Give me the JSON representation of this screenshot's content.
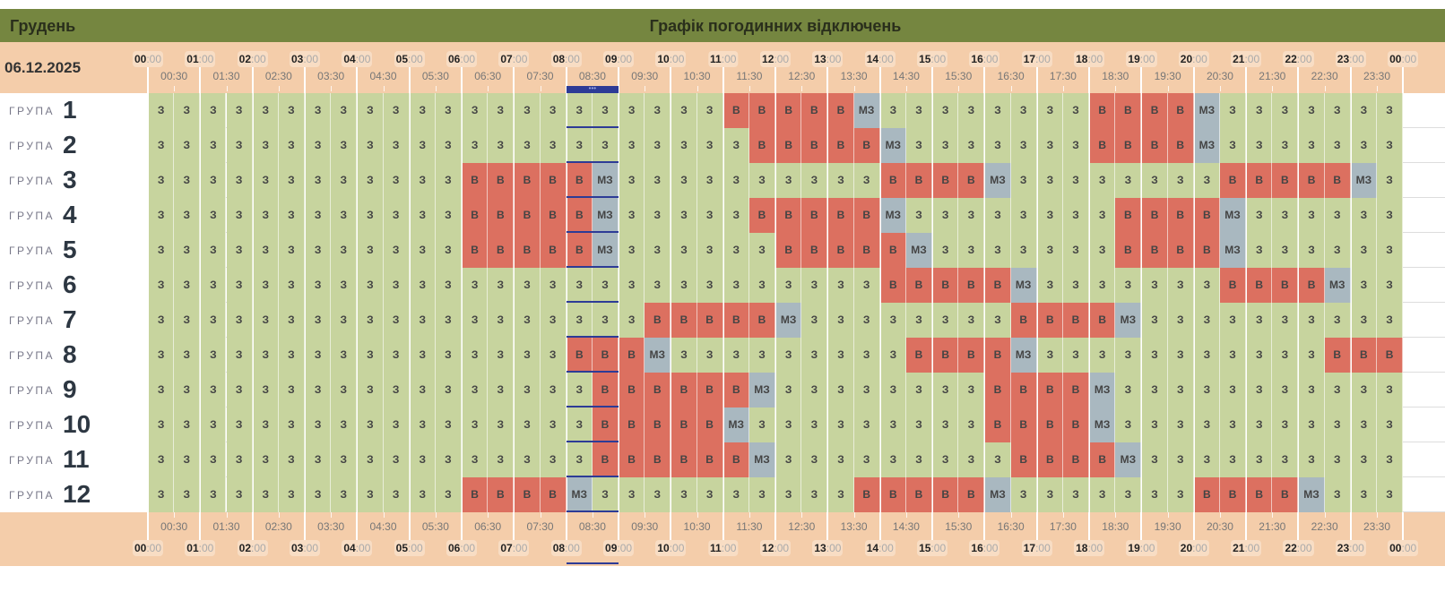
{
  "header": {
    "month": "Грудень",
    "title": "Графік погодинних відключень",
    "date": "06.12.2025",
    "current_marker": "•••"
  },
  "hours": [
    "00",
    "01",
    "02",
    "03",
    "04",
    "05",
    "06",
    "07",
    "08",
    "09",
    "10",
    "11",
    "12",
    "13",
    "14",
    "15",
    "16",
    "17",
    "18",
    "19",
    "20",
    "21",
    "22",
    "23",
    "00"
  ],
  "hour_suffix": ":00",
  "half_hours": [
    "00:30",
    "01:30",
    "02:30",
    "03:30",
    "04:30",
    "05:30",
    "06:30",
    "07:30",
    "08:30",
    "09:30",
    "10:30",
    "11:30",
    "12:30",
    "13:30",
    "14:30",
    "15:30",
    "16:30",
    "17:30",
    "18:30",
    "19:30",
    "20:30",
    "21:30",
    "22:30",
    "23:30"
  ],
  "current_slots": [
    16,
    17
  ],
  "colors": {
    "on": "#c7d49e",
    "off": "#dc7060",
    "maybe": "#a9b8c0",
    "header": "#758640",
    "timebar": "#f4cdaa",
    "current": "#2d3b96"
  },
  "group_word": "ГРУПА",
  "groups": [
    {
      "number": "1",
      "slots": [
        "З",
        "З",
        "З",
        "З",
        "З",
        "З",
        "З",
        "З",
        "З",
        "З",
        "З",
        "З",
        "З",
        "З",
        "З",
        "З",
        "З",
        "З",
        "З",
        "З",
        "З",
        "З",
        "В",
        "В",
        "В",
        "В",
        "В",
        "МЗ",
        "З",
        "З",
        "З",
        "З",
        "З",
        "З",
        "З",
        "З",
        "В",
        "В",
        "В",
        "В",
        "МЗ",
        "З",
        "З",
        "З",
        "З",
        "З",
        "З",
        "З"
      ]
    },
    {
      "number": "2",
      "slots": [
        "З",
        "З",
        "З",
        "З",
        "З",
        "З",
        "З",
        "З",
        "З",
        "З",
        "З",
        "З",
        "З",
        "З",
        "З",
        "З",
        "З",
        "З",
        "З",
        "З",
        "З",
        "З",
        "З",
        "В",
        "В",
        "В",
        "В",
        "В",
        "МЗ",
        "З",
        "З",
        "З",
        "З",
        "З",
        "З",
        "З",
        "В",
        "В",
        "В",
        "В",
        "МЗ",
        "З",
        "З",
        "З",
        "З",
        "З",
        "З",
        "З"
      ]
    },
    {
      "number": "3",
      "slots": [
        "З",
        "З",
        "З",
        "З",
        "З",
        "З",
        "З",
        "З",
        "З",
        "З",
        "З",
        "З",
        "В",
        "В",
        "В",
        "В",
        "В",
        "МЗ",
        "З",
        "З",
        "З",
        "З",
        "З",
        "З",
        "З",
        "З",
        "З",
        "З",
        "В",
        "В",
        "В",
        "В",
        "МЗ",
        "З",
        "З",
        "З",
        "З",
        "З",
        "З",
        "З",
        "З",
        "В",
        "В",
        "В",
        "В",
        "В",
        "МЗ",
        "З"
      ]
    },
    {
      "number": "4",
      "slots": [
        "З",
        "З",
        "З",
        "З",
        "З",
        "З",
        "З",
        "З",
        "З",
        "З",
        "З",
        "З",
        "В",
        "В",
        "В",
        "В",
        "В",
        "МЗ",
        "З",
        "З",
        "З",
        "З",
        "З",
        "В",
        "В",
        "В",
        "В",
        "В",
        "МЗ",
        "З",
        "З",
        "З",
        "З",
        "З",
        "З",
        "З",
        "З",
        "В",
        "В",
        "В",
        "В",
        "МЗ",
        "З",
        "З",
        "З",
        "З",
        "З",
        "З"
      ]
    },
    {
      "number": "5",
      "slots": [
        "З",
        "З",
        "З",
        "З",
        "З",
        "З",
        "З",
        "З",
        "З",
        "З",
        "З",
        "З",
        "В",
        "В",
        "В",
        "В",
        "В",
        "МЗ",
        "З",
        "З",
        "З",
        "З",
        "З",
        "З",
        "В",
        "В",
        "В",
        "В",
        "В",
        "МЗ",
        "З",
        "З",
        "З",
        "З",
        "З",
        "З",
        "З",
        "В",
        "В",
        "В",
        "В",
        "МЗ",
        "З",
        "З",
        "З",
        "З",
        "З",
        "З"
      ]
    },
    {
      "number": "6",
      "slots": [
        "З",
        "З",
        "З",
        "З",
        "З",
        "З",
        "З",
        "З",
        "З",
        "З",
        "З",
        "З",
        "З",
        "З",
        "З",
        "З",
        "З",
        "З",
        "З",
        "З",
        "З",
        "З",
        "З",
        "З",
        "З",
        "З",
        "З",
        "З",
        "В",
        "В",
        "В",
        "В",
        "В",
        "МЗ",
        "З",
        "З",
        "З",
        "З",
        "З",
        "З",
        "З",
        "В",
        "В",
        "В",
        "В",
        "МЗ",
        "З",
        "З"
      ]
    },
    {
      "number": "7",
      "slots": [
        "З",
        "З",
        "З",
        "З",
        "З",
        "З",
        "З",
        "З",
        "З",
        "З",
        "З",
        "З",
        "З",
        "З",
        "З",
        "З",
        "З",
        "З",
        "З",
        "В",
        "В",
        "В",
        "В",
        "В",
        "МЗ",
        "З",
        "З",
        "З",
        "З",
        "З",
        "З",
        "З",
        "З",
        "В",
        "В",
        "В",
        "В",
        "МЗ",
        "З",
        "З",
        "З",
        "З",
        "З",
        "З",
        "З",
        "З",
        "З",
        "З"
      ]
    },
    {
      "number": "8",
      "slots": [
        "З",
        "З",
        "З",
        "З",
        "З",
        "З",
        "З",
        "З",
        "З",
        "З",
        "З",
        "З",
        "З",
        "З",
        "З",
        "З",
        "В",
        "В",
        "В",
        "МЗ",
        "З",
        "З",
        "З",
        "З",
        "З",
        "З",
        "З",
        "З",
        "З",
        "В",
        "В",
        "В",
        "В",
        "МЗ",
        "З",
        "З",
        "З",
        "З",
        "З",
        "З",
        "З",
        "З",
        "З",
        "З",
        "З",
        "В",
        "В",
        "В"
      ]
    },
    {
      "number": "9",
      "slots": [
        "З",
        "З",
        "З",
        "З",
        "З",
        "З",
        "З",
        "З",
        "З",
        "З",
        "З",
        "З",
        "З",
        "З",
        "З",
        "З",
        "З",
        "В",
        "В",
        "В",
        "В",
        "В",
        "В",
        "МЗ",
        "З",
        "З",
        "З",
        "З",
        "З",
        "З",
        "З",
        "З",
        "В",
        "В",
        "В",
        "В",
        "МЗ",
        "З",
        "З",
        "З",
        "З",
        "З",
        "З",
        "З",
        "З",
        "З",
        "З",
        "З"
      ]
    },
    {
      "number": "10",
      "slots": [
        "З",
        "З",
        "З",
        "З",
        "З",
        "З",
        "З",
        "З",
        "З",
        "З",
        "З",
        "З",
        "З",
        "З",
        "З",
        "З",
        "З",
        "В",
        "В",
        "В",
        "В",
        "В",
        "МЗ",
        "З",
        "З",
        "З",
        "З",
        "З",
        "З",
        "З",
        "З",
        "З",
        "В",
        "В",
        "В",
        "В",
        "МЗ",
        "З",
        "З",
        "З",
        "З",
        "З",
        "З",
        "З",
        "З",
        "З",
        "З",
        "З"
      ]
    },
    {
      "number": "11",
      "slots": [
        "З",
        "З",
        "З",
        "З",
        "З",
        "З",
        "З",
        "З",
        "З",
        "З",
        "З",
        "З",
        "З",
        "З",
        "З",
        "З",
        "З",
        "В",
        "В",
        "В",
        "В",
        "В",
        "В",
        "МЗ",
        "З",
        "З",
        "З",
        "З",
        "З",
        "З",
        "З",
        "З",
        "З",
        "В",
        "В",
        "В",
        "В",
        "МЗ",
        "З",
        "З",
        "З",
        "З",
        "З",
        "З",
        "З",
        "З",
        "З",
        "З"
      ]
    },
    {
      "number": "12",
      "slots": [
        "З",
        "З",
        "З",
        "З",
        "З",
        "З",
        "З",
        "З",
        "З",
        "З",
        "З",
        "З",
        "В",
        "В",
        "В",
        "В",
        "МЗ",
        "З",
        "З",
        "З",
        "З",
        "З",
        "З",
        "З",
        "З",
        "З",
        "З",
        "В",
        "В",
        "В",
        "В",
        "В",
        "МЗ",
        "З",
        "З",
        "З",
        "З",
        "З",
        "З",
        "З",
        "В",
        "В",
        "В",
        "В",
        "МЗ",
        "З",
        "З",
        "З"
      ]
    }
  ]
}
